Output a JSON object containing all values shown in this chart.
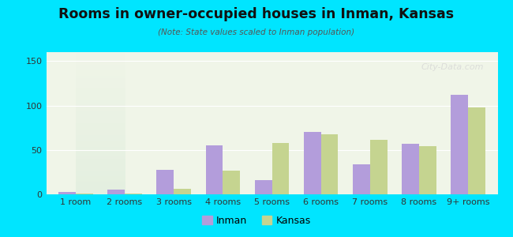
{
  "title": "Rooms in owner-occupied houses in Inman, Kansas",
  "subtitle": "(Note: State values scaled to Inman population)",
  "categories": [
    "1 room",
    "2 rooms",
    "3 rooms",
    "4 rooms",
    "5 rooms",
    "6 rooms",
    "7 rooms",
    "8 rooms",
    "9+ rooms"
  ],
  "inman_values": [
    3,
    5,
    28,
    55,
    16,
    70,
    34,
    57,
    112
  ],
  "kansas_values": [
    1,
    1,
    6,
    27,
    58,
    68,
    61,
    54,
    98
  ],
  "inman_color": "#b39ddb",
  "kansas_color": "#c5d490",
  "background_outer": "#00e5ff",
  "background_inner_top": "#f0f5e8",
  "background_inner_bottom": "#d8ead8",
  "ylim": [
    0,
    160
  ],
  "yticks": [
    0,
    50,
    100,
    150
  ],
  "bar_width": 0.35,
  "watermark": "City-Data.com"
}
